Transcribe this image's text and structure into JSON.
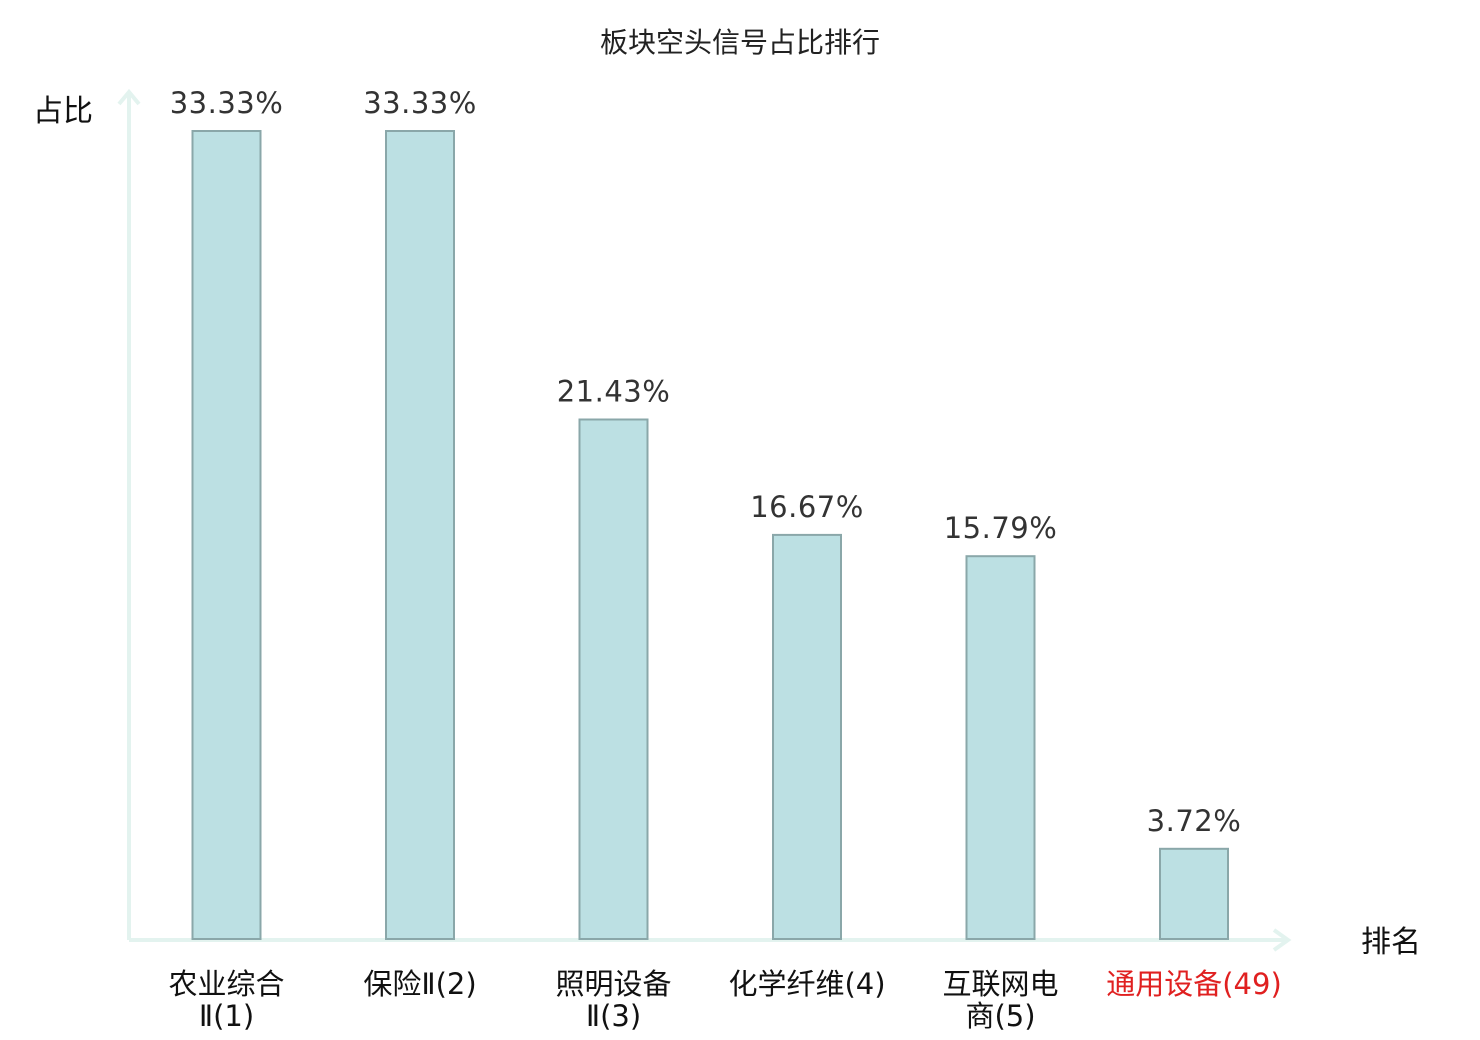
{
  "chart_data": {
    "type": "bar",
    "title": "板块空头信号占比排行",
    "ylabel": "占比",
    "xlabel": "排名",
    "categories": [
      [
        "农业综合",
        "Ⅱ(1)"
      ],
      [
        "保险Ⅱ(2)"
      ],
      [
        "照明设备",
        "Ⅱ(3)"
      ],
      [
        "化学纤维(4)"
      ],
      [
        "互联网电",
        "商(5)"
      ],
      [
        "通用设备(49)"
      ]
    ],
    "values": [
      33.33,
      33.33,
      21.43,
      16.67,
      15.79,
      3.72
    ],
    "value_labels": [
      "33.33%",
      "33.33%",
      "21.43%",
      "16.67%",
      "15.79%",
      "3.72%"
    ],
    "ylim": [
      0,
      36
    ],
    "highlight_index": 5,
    "grid": false,
    "colors": {
      "bar_fill": "#bce0e3",
      "bar_stroke": "#8aa7a9",
      "axis": "#e3f3ef",
      "highlight_label": "#e02020"
    }
  }
}
